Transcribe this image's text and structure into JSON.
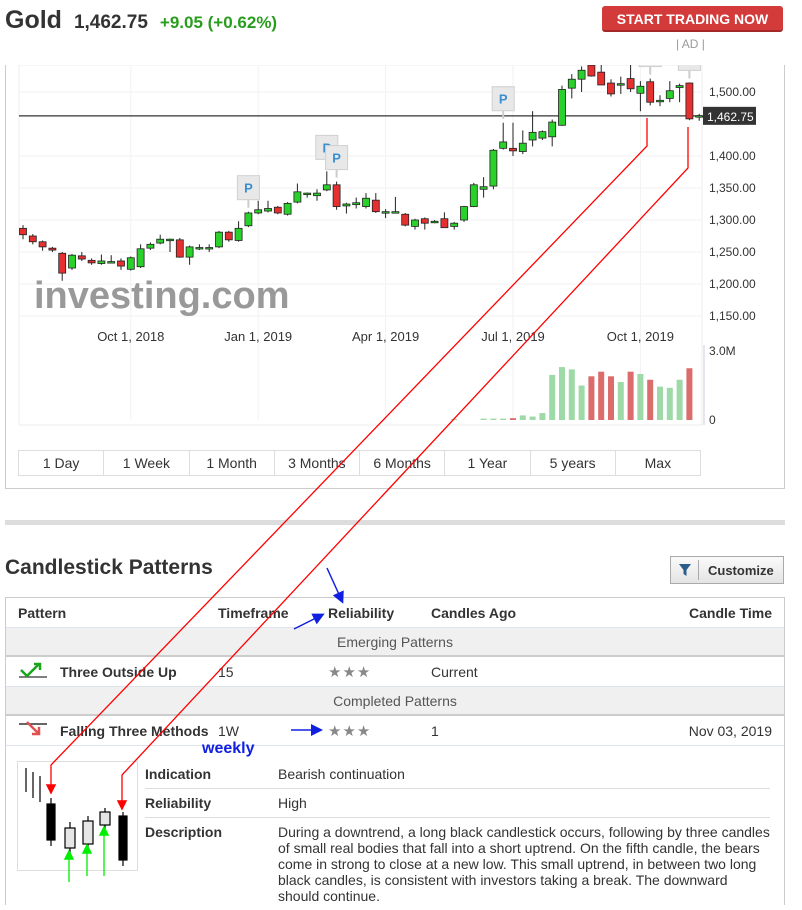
{
  "header": {
    "name": "Gold",
    "price": "1,462.75",
    "change": "+9.05 (+0.62%)",
    "cta": "START TRADING NOW",
    "ad": "| AD |"
  },
  "colors": {
    "up": "#2bd12b",
    "down": "#e63030",
    "change": "#2a9d1f",
    "cta": "#d33a3a",
    "annotation_red": "#ff0000",
    "annotation_blue": "#1020e0",
    "annotation_green": "#00ee00"
  },
  "chart": {
    "watermark": "investing.com",
    "current_price_label": "1,462.75",
    "current_price": 1462.75,
    "price_ticks": [
      {
        "v": 1500,
        "label": "1,500.00"
      },
      {
        "v": 1400,
        "label": "1,400.00"
      },
      {
        "v": 1350,
        "label": "1,350.00"
      },
      {
        "v": 1300,
        "label": "1,300.00"
      },
      {
        "v": 1250,
        "label": "1,250.00"
      },
      {
        "v": 1200,
        "label": "1,200.00"
      },
      {
        "v": 1150,
        "label": "1,150.00"
      }
    ],
    "date_ticks": [
      {
        "i": 11,
        "label": "Oct 1, 2018"
      },
      {
        "i": 24,
        "label": "Jan 1, 2019"
      },
      {
        "i": 37,
        "label": "Apr 1, 2019"
      },
      {
        "i": 50,
        "label": "Jul 1, 2019"
      },
      {
        "i": 63,
        "label": "Oct 1, 2019"
      }
    ],
    "volume_ticks": [
      {
        "v": 3.0,
        "label": "3.0M"
      },
      {
        "v": 0,
        "label": "0"
      }
    ],
    "marker_label": "P",
    "markers": [
      23,
      31,
      32,
      49,
      64,
      68
    ],
    "candles": [
      [
        1287,
        1292,
        1270,
        1277
      ],
      [
        1275,
        1278,
        1262,
        1266
      ],
      [
        1266,
        1268,
        1252,
        1258
      ],
      [
        1256,
        1258,
        1250,
        1253
      ],
      [
        1248,
        1250,
        1205,
        1217
      ],
      [
        1225,
        1247,
        1222,
        1245
      ],
      [
        1244,
        1250,
        1236,
        1239
      ],
      [
        1237,
        1240,
        1230,
        1233
      ],
      [
        1232,
        1246,
        1230,
        1236
      ],
      [
        1235,
        1245,
        1232,
        1235
      ],
      [
        1236,
        1240,
        1222,
        1228
      ],
      [
        1223,
        1243,
        1221,
        1241
      ],
      [
        1227,
        1262,
        1225,
        1255
      ],
      [
        1256,
        1265,
        1253,
        1262
      ],
      [
        1264,
        1277,
        1262,
        1270
      ],
      [
        1270,
        1271,
        1250,
        1270
      ],
      [
        1269,
        1272,
        1241,
        1242
      ],
      [
        1242,
        1260,
        1230,
        1258
      ],
      [
        1257,
        1262,
        1253,
        1257
      ],
      [
        1257,
        1262,
        1250,
        1257
      ],
      [
        1258,
        1283,
        1256,
        1281
      ],
      [
        1281,
        1283,
        1266,
        1269
      ],
      [
        1268,
        1298,
        1266,
        1287
      ],
      [
        1291,
        1313,
        1289,
        1311
      ],
      [
        1311,
        1330,
        1309,
        1316
      ],
      [
        1314,
        1330,
        1312,
        1318
      ],
      [
        1320,
        1322,
        1309,
        1311
      ],
      [
        1309,
        1328,
        1307,
        1326
      ],
      [
        1328,
        1357,
        1326,
        1344
      ],
      [
        1342,
        1343,
        1335,
        1342
      ],
      [
        1338,
        1348,
        1330,
        1342
      ],
      [
        1347,
        1376,
        1345,
        1355
      ],
      [
        1355,
        1360,
        1316,
        1321
      ],
      [
        1322,
        1327,
        1310,
        1325
      ],
      [
        1324,
        1335,
        1318,
        1327
      ],
      [
        1321,
        1342,
        1318,
        1334
      ],
      [
        1331,
        1342,
        1311,
        1313
      ],
      [
        1313,
        1317,
        1303,
        1313
      ],
      [
        1313,
        1336,
        1311,
        1313
      ],
      [
        1309,
        1311,
        1290,
        1292
      ],
      [
        1290,
        1302,
        1285,
        1300
      ],
      [
        1302,
        1304,
        1285,
        1295
      ],
      [
        1298,
        1300,
        1295,
        1298
      ],
      [
        1302,
        1312,
        1288,
        1288
      ],
      [
        1290,
        1297,
        1285,
        1295
      ],
      [
        1300,
        1322,
        1297,
        1321
      ],
      [
        1321,
        1358,
        1320,
        1355
      ],
      [
        1348,
        1367,
        1335,
        1352
      ],
      [
        1353,
        1411,
        1348,
        1409
      ],
      [
        1412,
        1452,
        1410,
        1422
      ],
      [
        1412,
        1452,
        1400,
        1408
      ],
      [
        1407,
        1440,
        1403,
        1420
      ],
      [
        1425,
        1470,
        1415,
        1437
      ],
      [
        1428,
        1440,
        1425,
        1438
      ],
      [
        1430,
        1457,
        1415,
        1453
      ],
      [
        1448,
        1510,
        1447,
        1504
      ],
      [
        1506,
        1528,
        1490,
        1520
      ],
      [
        1520,
        1540,
        1500,
        1534
      ],
      [
        1542,
        1546,
        1524,
        1525
      ],
      [
        1531,
        1546,
        1513,
        1511
      ],
      [
        1514,
        1520,
        1493,
        1497
      ],
      [
        1513,
        1524,
        1497,
        1513
      ],
      [
        1521,
        1548,
        1500,
        1505
      ],
      [
        1498,
        1517,
        1470,
        1509
      ],
      [
        1516,
        1521,
        1479,
        1484
      ],
      [
        1487,
        1495,
        1478,
        1487
      ],
      [
        1490,
        1517,
        1484,
        1502
      ],
      [
        1507,
        1513,
        1484,
        1510
      ],
      [
        1514,
        1515,
        1456,
        1458
      ],
      [
        1463,
        1466,
        1455,
        1463
      ]
    ],
    "volume_millions": [
      null,
      null,
      null,
      null,
      null,
      null,
      null,
      null,
      null,
      null,
      null,
      null,
      null,
      null,
      null,
      null,
      null,
      null,
      null,
      null,
      null,
      null,
      null,
      null,
      null,
      null,
      null,
      null,
      null,
      null,
      null,
      null,
      null,
      null,
      null,
      null,
      null,
      null,
      null,
      null,
      null,
      null,
      null,
      null,
      0.04,
      null,
      null,
      0.06,
      0.06,
      0.06,
      0.08,
      0.2,
      0.15,
      0.3,
      1.96,
      2.3,
      2.2,
      1.5,
      1.9,
      2.1,
      1.9,
      1.65,
      2.1,
      2.0,
      1.75,
      1.45,
      1.4,
      1.75,
      2.25,
      null
    ],
    "ranges": [
      "1 Day",
      "1 Week",
      "1 Month",
      "3 Months",
      "6 Months",
      "1 Year",
      "5 years",
      "Max"
    ]
  },
  "patterns": {
    "title": "Candlestick Patterns",
    "customize": "Customize",
    "columns": [
      "Pattern",
      "Timeframe",
      "Reliability",
      "Candles Ago",
      "Candle Time"
    ],
    "groups": [
      {
        "label": "Emerging Patterns",
        "rows": [
          {
            "name": "Three Outside Up",
            "timeframe": "15",
            "reliability": "★★★",
            "stars": 3,
            "candles_ago": "Current",
            "time": "",
            "direction": "bullish"
          }
        ]
      },
      {
        "label": "Completed Patterns",
        "rows": [
          {
            "name": "Falling Three Methods",
            "timeframe": "1W",
            "reliability": "★★★",
            "stars": 3,
            "candles_ago": "1",
            "time": "Nov 03, 2019",
            "direction": "bearish"
          }
        ]
      }
    ],
    "detail": {
      "indication_label": "Indication",
      "indication": "Bearish continuation",
      "reliability_label": "Reliability",
      "reliability": "High",
      "description_label": "Description",
      "description": "During a downtrend, a long black candlestick occurs, following by three candles of small real bodies that fall into a short uptrend. On the fifth candle, the bears come in strong to close at a new low. This small uptrend, in between two long black candles, is consistent with investors taking a break. The downward should continue."
    }
  },
  "annotation": {
    "weekly": "weekly"
  }
}
